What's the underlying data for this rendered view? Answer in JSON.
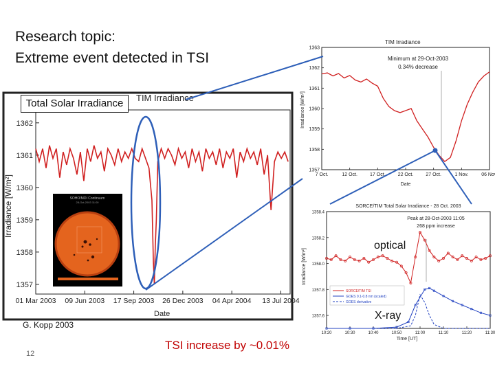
{
  "slide": {
    "title_line1": "Research topic:",
    "title_line2": "Extreme event detected in TSI",
    "tsi_label": "Total Solar Irradiance",
    "credit": "G. Kopp 2003",
    "page_number": "12",
    "tsi_increase": "TSI increase by ~0.01%",
    "optical_label": "optical",
    "xray_label": "X-ray",
    "accent_color": "#c00000",
    "callout_color": "#2e5fb8"
  },
  "chart_data": [
    {
      "type": "line",
      "title": "TIM Irradiance",
      "xlabel": "Date",
      "ylabel": "Irradiance [W/m²]",
      "ylim": [
        1356.7,
        1362.4
      ],
      "xlim": [
        "2003-03-01",
        "2004-08-01"
      ],
      "x_ticks": [
        "01 Mar 2003",
        "09 Jun 2003",
        "17 Sep 2003",
        "26 Dec 2003",
        "04 Apr 2004",
        "13 Jul 2004"
      ],
      "y_ticks": [
        1357,
        1358,
        1359,
        1360,
        1361,
        1362
      ],
      "series": [
        {
          "color": "#d02020",
          "x": [
            "2003-03-01",
            "2003-03-08",
            "2003-03-15",
            "2003-03-22",
            "2003-03-29",
            "2003-04-05",
            "2003-04-12",
            "2003-04-19",
            "2003-04-26",
            "2003-05-03",
            "2003-05-10",
            "2003-05-17",
            "2003-05-24",
            "2003-05-31",
            "2003-06-07",
            "2003-06-14",
            "2003-06-21",
            "2003-06-28",
            "2003-07-05",
            "2003-07-12",
            "2003-07-19",
            "2003-07-26",
            "2003-08-02",
            "2003-08-09",
            "2003-08-16",
            "2003-08-23",
            "2003-08-30",
            "2003-09-06",
            "2003-09-13",
            "2003-09-20",
            "2003-09-27",
            "2003-10-04",
            "2003-10-11",
            "2003-10-18",
            "2003-10-24",
            "2003-10-27",
            "2003-10-29",
            "2003-10-31",
            "2003-11-02",
            "2003-11-05",
            "2003-11-12",
            "2003-11-19",
            "2003-11-26",
            "2003-12-03",
            "2003-12-10",
            "2003-12-17",
            "2003-12-24",
            "2003-12-31",
            "2004-01-07",
            "2004-01-14",
            "2004-01-21",
            "2004-01-28",
            "2004-02-04",
            "2004-02-11",
            "2004-02-18",
            "2004-02-25",
            "2004-03-03",
            "2004-03-10",
            "2004-03-17",
            "2004-03-24",
            "2004-03-31",
            "2004-04-07",
            "2004-04-14",
            "2004-04-21",
            "2004-04-28",
            "2004-05-05",
            "2004-05-12",
            "2004-05-19",
            "2004-05-26",
            "2004-06-02",
            "2004-06-09",
            "2004-06-16",
            "2004-06-23",
            "2004-06-30",
            "2004-07-07",
            "2004-07-14",
            "2004-07-21",
            "2004-07-28"
          ],
          "y": [
            1361.2,
            1360.8,
            1361.2,
            1360.6,
            1361.3,
            1360.9,
            1361.2,
            1360.3,
            1361.1,
            1360.7,
            1361.2,
            1360.9,
            1360.4,
            1361.1,
            1360.2,
            1361.2,
            1360.8,
            1361.3,
            1360.9,
            1361.1,
            1360.5,
            1361.2,
            1361.0,
            1360.7,
            1361.2,
            1360.8,
            1361.1,
            1360.9,
            1361.2,
            1360.9,
            1360.8,
            1361.2,
            1360.9,
            1360.6,
            1359.6,
            1357.7,
            1357.0,
            1358.2,
            1359.0,
            1360.8,
            1361.2,
            1360.9,
            1361.2,
            1361.0,
            1360.7,
            1361.2,
            1360.9,
            1361.1,
            1360.6,
            1361.2,
            1360.8,
            1361.1,
            1360.5,
            1361.2,
            1360.9,
            1361.1,
            1360.7,
            1361.2,
            1360.6,
            1361.1,
            1360.9,
            1361.2,
            1360.3,
            1361.1,
            1360.8,
            1361.2,
            1360.9,
            1361.1,
            1360.7,
            1361.2,
            1360.4,
            1361.0,
            1359.3,
            1360.8,
            1361.1,
            1360.9,
            1361.1,
            1360.8
          ]
        }
      ]
    },
    {
      "type": "line",
      "title": "TIM Irradiance",
      "annotation": "Minimum at 29-Oct-2003\n0.34% decrease",
      "xlabel": "Date",
      "ylabel": "Irradiance [W/m²]",
      "ylim": [
        1357,
        1363
      ],
      "xlim": [
        "2003-10-07",
        "2003-11-06"
      ],
      "x_ticks": [
        "7 Oct.",
        "12 Oct.",
        "17 Oct.",
        "22 Oct.",
        "27 Oct.",
        "1 Nov.",
        "06 Nov."
      ],
      "y_ticks": [
        1357,
        1358,
        1359,
        1360,
        1361,
        1362,
        1363
      ],
      "series": [
        {
          "color": "#d02020",
          "x": [
            7,
            8,
            9,
            10,
            11,
            12,
            13,
            14,
            15,
            16,
            17,
            18,
            19,
            20,
            21,
            22,
            23,
            24,
            25,
            26,
            27,
            28,
            29,
            30,
            31,
            32,
            33,
            34,
            35,
            36,
            37
          ],
          "y": [
            1361.7,
            1361.75,
            1361.6,
            1361.72,
            1361.5,
            1361.62,
            1361.4,
            1361.3,
            1361.45,
            1361.25,
            1361.1,
            1360.5,
            1360.1,
            1359.9,
            1359.8,
            1359.9,
            1360.0,
            1359.4,
            1359.0,
            1358.6,
            1358.1,
            1357.7,
            1357.4,
            1357.6,
            1358.4,
            1359.4,
            1360.2,
            1360.8,
            1361.3,
            1361.6,
            1361.8
          ]
        }
      ]
    },
    {
      "type": "line",
      "title": "SORCE/TIM Total Solar Irradiance - 28 Oct. 2003",
      "annotation": "Peak at 28-Oct-2003 11:05\n268 ppm increase",
      "xlabel": "Time [UT]",
      "ylabel": "Irradiance [W/m²]",
      "ylim": [
        1357.5,
        1358.4
      ],
      "x_ticks": [
        "10:20",
        "10:30",
        "10:40",
        "10:50",
        "11:00",
        "11:10",
        "11:20",
        "11:30"
      ],
      "y_ticks": [
        1357.6,
        1357.8,
        1358.0,
        1358.2,
        1358.4
      ],
      "legend": [
        "SORCE/TIM TSI",
        "GOES 0.1-0.8 nm (scaled)",
        "GOES derivative"
      ],
      "legend_position": "bottom-left",
      "series": [
        {
          "name": "SORCE/TIM TSI",
          "color": "#d02020",
          "x": [
            0,
            2,
            4,
            6,
            8,
            10,
            12,
            14,
            16,
            18,
            20,
            22,
            24,
            26,
            28,
            30,
            32,
            34,
            36,
            38,
            40,
            42,
            44,
            46,
            48,
            50,
            52,
            54,
            56,
            58,
            60,
            62,
            64,
            66,
            68,
            70
          ],
          "y": [
            1358.04,
            1358.03,
            1358.06,
            1358.03,
            1358.02,
            1358.05,
            1358.03,
            1358.02,
            1358.04,
            1358.01,
            1358.03,
            1358.05,
            1358.06,
            1358.04,
            1358.02,
            1358.01,
            1357.98,
            1357.93,
            1357.85,
            1358.05,
            1358.24,
            1358.18,
            1358.1,
            1358.05,
            1358.02,
            1358.04,
            1358.08,
            1358.05,
            1358.03,
            1358.06,
            1358.04,
            1358.02,
            1358.05,
            1358.03,
            1358.04,
            1358.06
          ]
        },
        {
          "name": "GOES 0.1-0.8 nm (scaled)",
          "color": "#2040c0",
          "x": [
            0,
            10,
            20,
            30,
            35,
            38,
            42,
            44,
            46,
            50,
            54,
            58,
            62,
            66,
            70
          ],
          "y": [
            1357.5,
            1357.5,
            1357.5,
            1357.51,
            1357.55,
            1357.68,
            1357.8,
            1357.81,
            1357.79,
            1357.75,
            1357.71,
            1357.68,
            1357.65,
            1357.62,
            1357.6
          ]
        },
        {
          "name": "GOES derivative",
          "color": "#2040c0",
          "x": [
            0,
            10,
            20,
            30,
            36,
            38,
            40,
            42,
            44,
            46,
            50,
            60,
            70
          ],
          "y": [
            1357.5,
            1357.5,
            1357.5,
            1357.5,
            1357.52,
            1357.6,
            1357.76,
            1357.7,
            1357.6,
            1357.53,
            1357.5,
            1357.5,
            1357.5
          ]
        }
      ]
    }
  ],
  "inset": {
    "title": "SOHO/MDI Continuum",
    "subtitle": "28-Oct-2003 11:00"
  }
}
